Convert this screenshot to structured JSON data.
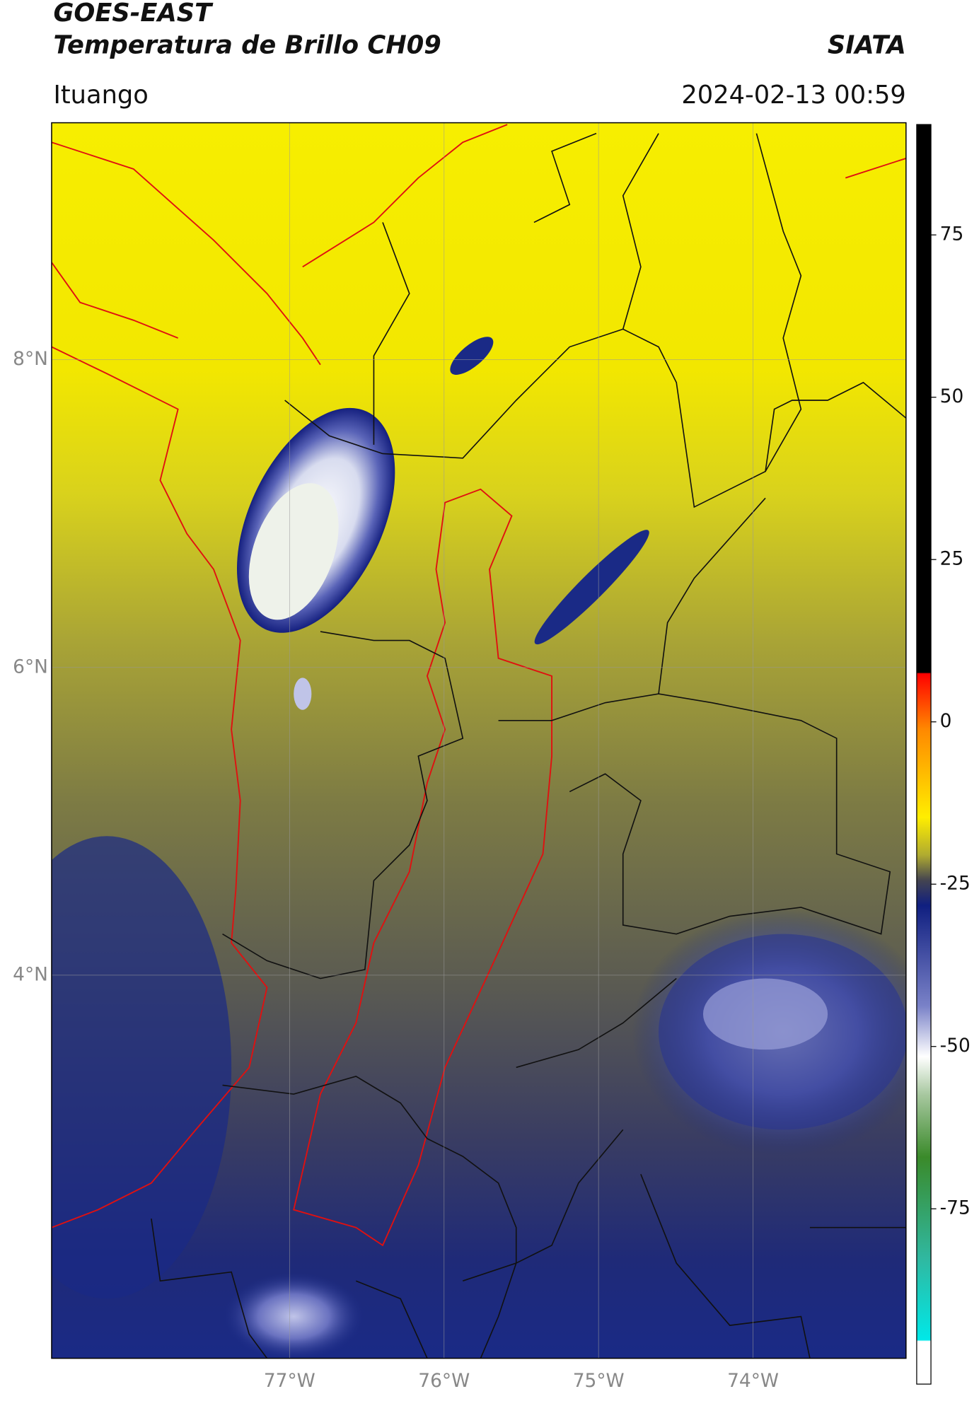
{
  "chart_data": {
    "type": "map",
    "title": "GOES-EAST",
    "subtitle": "Temperatura de Brillo CH09",
    "source": "SIATA",
    "location": "Ituango",
    "datetime": "2024-02-13 00:59",
    "xlim": [
      -78.54,
      -73.01
    ],
    "ylim": [
      1.51,
      9.54
    ],
    "xticks": [
      {
        "value": -77,
        "label": "77°W"
      },
      {
        "value": -76,
        "label": "76°W"
      },
      {
        "value": -75,
        "label": "75°W"
      },
      {
        "value": -74,
        "label": "74°W"
      }
    ],
    "yticks": [
      {
        "value": 8,
        "label": "8°N"
      },
      {
        "value": 6,
        "label": "6°N"
      },
      {
        "value": 4,
        "label": "4°N"
      }
    ],
    "grid": true,
    "colorbar": {
      "lim": [
        -102,
        92
      ],
      "ticks": [
        75,
        50,
        25,
        0,
        -25,
        -50,
        -75
      ]
    }
  }
}
